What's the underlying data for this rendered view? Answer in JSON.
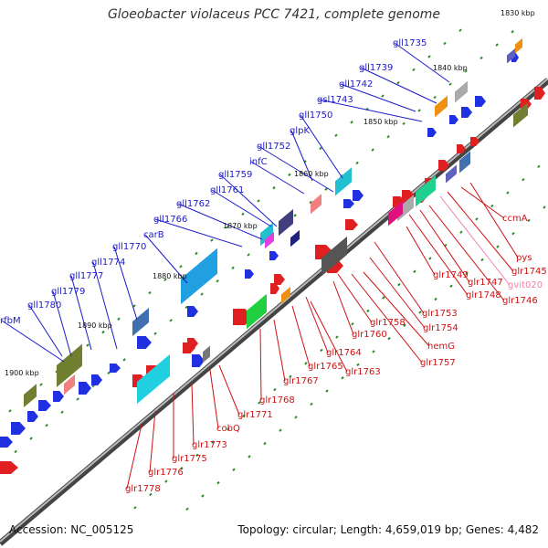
{
  "title": "Gloeobacter violaceus PCC 7421, complete genome",
  "accession": "Accession: NC_005125",
  "topology": "Topology: circular; Length: 4,659,019 bp; Genes: 4,482",
  "colors": {
    "top_strand_label": "#1a1acc",
    "bottom_strand_label": "#d01010",
    "rna_label": "#f080b0"
  },
  "kbp_ticks": [
    "1830 kbp",
    "1840 kbp",
    "1850 kbp",
    "1860 kbp",
    "1870 kbp",
    "1880 kbp",
    "1890 kbp",
    "1900 kbp"
  ],
  "top_labels": [
    "gll1735",
    "gll1739",
    "gll1742",
    "gsl1743",
    "gll1750",
    "glpK",
    "gll1752",
    "infC",
    "gll1759",
    "gll1761",
    "gll1762",
    "gll1766",
    "carB",
    "gll1770",
    "gll1774",
    "gll1777",
    "gll1779",
    "gll1780",
    "rfbM"
  ],
  "bottom_labels": [
    "ccmA",
    "pys",
    "glr1745",
    "gvit020",
    "glr1746",
    "glr1747",
    "glr1748",
    "glr1749",
    "glr1753",
    "glr1754",
    "glr1757",
    "hemG",
    "glr1758",
    "glr1760",
    "glr1763",
    "glr1764",
    "glr1765",
    "glr1767",
    "glr1768",
    "glr1771",
    "cobQ",
    "glr1773",
    "glr1775",
    "glr1776",
    "glr1778"
  ]
}
